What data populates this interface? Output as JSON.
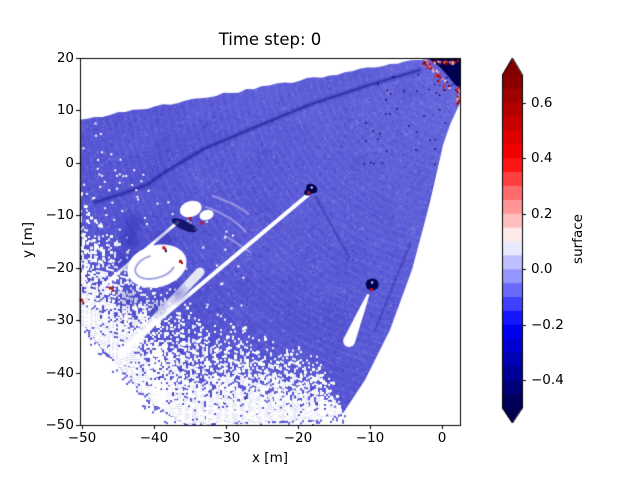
{
  "figure": {
    "background": "#ffffff"
  },
  "chart_data": {
    "type": "heatmap",
    "title": "Time step: 0",
    "xlabel": "x [m]",
    "ylabel": "y [m]",
    "xlim": [
      -50.28,
      2.5
    ],
    "ylim": [
      -50,
      20
    ],
    "x_ticks": [
      -50,
      -40,
      -30,
      -20,
      -10,
      0
    ],
    "x_tick_labels": [
      "−50",
      "−40",
      "−30",
      "−20",
      "−10",
      "0"
    ],
    "y_ticks": [
      20,
      10,
      0,
      -10,
      -20,
      -30,
      -40,
      -50
    ],
    "y_tick_labels": [
      "20",
      "10",
      "0",
      "−10",
      "−20",
      "−30",
      "−40",
      "−50"
    ],
    "grid": false,
    "colormap": "seismic",
    "colorbar": {
      "label": "surface",
      "vmin": -0.5,
      "vmax": 0.7,
      "ticks": [
        0.6,
        0.4,
        0.2,
        0.0,
        -0.2,
        -0.4
      ],
      "tick_labels": [
        "0.6",
        "0.4",
        "0.2",
        "0.0",
        "−0.2",
        "−0.4"
      ],
      "extend": "both",
      "n_bands": 24
    },
    "description": "Fan-shaped sonar/bathymetry surface difference scan at time step 0; mostly negative (blue) values with white dropout speckle toward far range, dark scour channel, white acoustic-shadow streaks, crater-like white patch and small dark objects with red highlights.",
    "sensor_origin": [
      2.5,
      20.6
    ],
    "fan_boundary": [
      [
        -50.3,
        8.2
      ],
      [
        -1.95,
        20
      ],
      [
        2.5,
        20
      ],
      [
        2.5,
        11.4
      ],
      [
        1.1,
        7.2
      ],
      [
        0.14,
        3.4
      ],
      [
        -1.95,
        -9.0
      ],
      [
        -4.17,
        -20.4
      ],
      [
        -7.23,
        -31.9
      ],
      [
        -10.7,
        -41.4
      ],
      [
        -13.9,
        -48.1
      ],
      [
        -17.0,
        -49.0
      ],
      [
        -26.7,
        -49.4
      ],
      [
        -35.7,
        -49.8
      ],
      [
        -40.6,
        -45.6
      ],
      [
        -50.3,
        -30.4
      ]
    ],
    "speckle_inner": [
      [
        -50.3,
        -4.8
      ],
      [
        -43.3,
        -16.6
      ],
      [
        -36.4,
        -26.2
      ],
      [
        -25.3,
        -31.9
      ],
      [
        -17.0,
        -36.7
      ],
      [
        -14.9,
        -42.4
      ],
      [
        -13.5,
        -48.1
      ]
    ],
    "speckle_outer": [
      [
        -50.3,
        -30.4
      ],
      [
        -40.6,
        -45.6
      ],
      [
        -35.7,
        -49.8
      ],
      [
        -26.7,
        -49.4
      ],
      [
        -17.0,
        -49.0
      ],
      [
        -13.5,
        -47.7
      ]
    ],
    "features": {
      "dark_corner_patch": [
        [
          -1.95,
          20
        ],
        [
          2.5,
          20
        ],
        [
          2.5,
          14.3
        ],
        [
          1.8,
          14.9
        ],
        [
          0.8,
          16.6
        ],
        [
          -0.3,
          18.3
        ]
      ],
      "channel_curve": [
        [
          -3.1,
          17.7
        ],
        [
          -10.0,
          14.9
        ],
        [
          -18.6,
          11.0
        ],
        [
          -26.0,
          6.8
        ],
        [
          -32.9,
          2.8
        ],
        [
          -38.1,
          -1.4
        ],
        [
          -41.0,
          -4.2
        ],
        [
          -44.4,
          -5.9
        ],
        [
          -48.2,
          -7.5
        ]
      ],
      "long_streak": {
        "from": [
          -18.6,
          -6.1
        ],
        "to": [
          -44.7,
          -36.1
        ],
        "width": 4
      },
      "wide_streak": {
        "from": [
          -33.6,
          -20.8
        ],
        "to": [
          -44.4,
          -36.5
        ],
        "width": 9
      },
      "streak2": {
        "from": [
          -36.7,
          -11.3
        ],
        "to": [
          -47.5,
          -23.9
        ],
        "width": 3
      },
      "head_object": {
        "center": [
          -18.1,
          -4.9
        ],
        "r": 0.9,
        "red": [
          -18.6,
          -5.6
        ]
      },
      "head_trail": [
        [
          -17.5,
          -6.5
        ],
        [
          -14.8,
          -13.3
        ],
        [
          -12.9,
          -18.0
        ]
      ],
      "white_blob": {
        "lobes": [
          [
            -34.9,
            -8.8,
            1.55,
            1.5
          ],
          [
            -32.7,
            -9.95,
            1.0,
            0.95
          ]
        ],
        "dark_smudge": [
          -35.8,
          -11.9,
          1.9,
          0.9,
          25
        ],
        "reds": [
          [
            -35.0,
            -10.5
          ],
          [
            -33.4,
            -11.4
          ]
        ]
      },
      "crater": {
        "center": [
          -39.6,
          -19.7
        ],
        "rx": 4.2,
        "ry": 4.0,
        "rot": -15,
        "ring_rx": 2.8,
        "ring_ry": 2.2,
        "reds": [
          [
            -38.7,
            -16.1
          ],
          [
            -36.4,
            -18.7
          ]
        ]
      },
      "teardrop": {
        "center": [
          -9.7,
          -23.2
        ],
        "r": 0.95,
        "red": [
          -9.9,
          -24.1
        ],
        "shadow_from": [
          -10.3,
          -25.3
        ],
        "shadow_to": [
          -12.9,
          -34.0
        ]
      },
      "red_specks": [
        [
          -46.0,
          -24.0
        ],
        [
          -50.1,
          -26.3
        ],
        [
          0.1,
          -0.9
        ]
      ],
      "faint_dark_lines": [
        [
          [
            0.14,
            2.5
          ],
          [
            -1.8,
            -8.0
          ]
        ],
        [
          [
            -4.4,
            -15.3
          ],
          [
            -9.3,
            -31.9
          ]
        ],
        [
          [
            -40.6,
            -43.9
          ],
          [
            -26.7,
            -45.0
          ]
        ],
        [
          [
            -25.6,
            -45.4
          ],
          [
            -19.7,
            -47.1
          ]
        ]
      ]
    },
    "palette": {
      "base_dark": "#4a4ace",
      "base_light": "#6666de",
      "mottle_light": "#8d8dec",
      "mottle_dark": "#2c2cb4",
      "navy": "#000050",
      "channel": "#1a1a8f",
      "red": "#cc1111",
      "dark_red": "#7f0000",
      "white": "#ffffff"
    }
  }
}
